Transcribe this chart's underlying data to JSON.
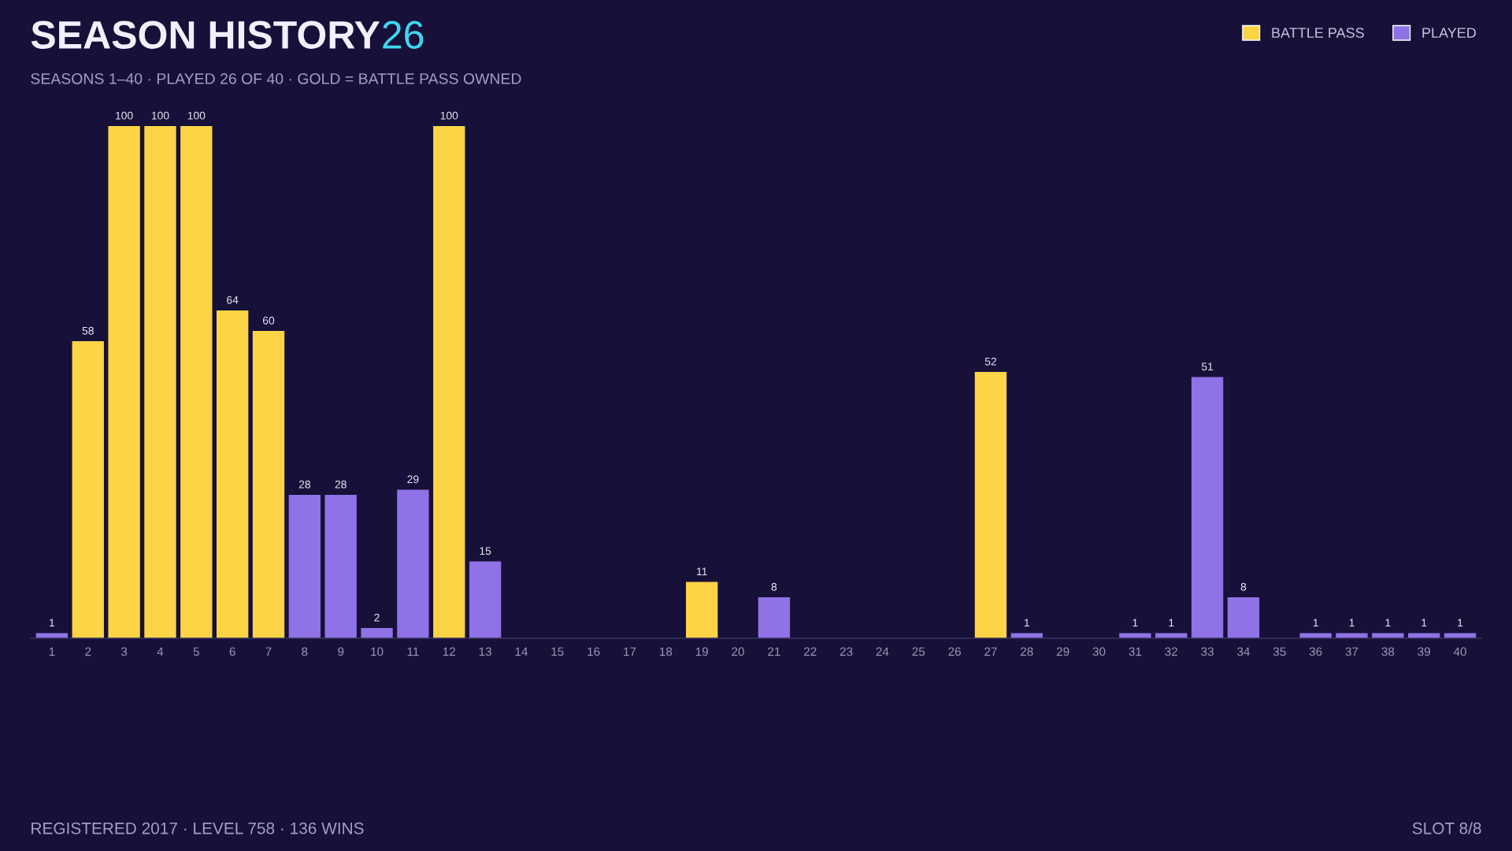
{
  "chart_data": {
    "type": "bar",
    "title": "SEASON HISTORY",
    "subtitle": "SEASONS 1–40 · PLAYED 26 OF 40 · GOLD = BATTLE PASS OWNED",
    "annotations": [
      "26",
      "REGISTERED 2017 · LEVEL 758 · 136 WINS",
      "SLOT 8/8"
    ],
    "categories": [
      "1",
      "2",
      "3",
      "4",
      "5",
      "6",
      "7",
      "8",
      "9",
      "10",
      "11",
      "12",
      "13",
      "14",
      "15",
      "16",
      "17",
      "18",
      "19",
      "20",
      "21",
      "22",
      "23",
      "24",
      "25",
      "26",
      "27",
      "28",
      "29",
      "30",
      "31",
      "32",
      "33",
      "34",
      "35",
      "36",
      "37",
      "38",
      "39",
      "40"
    ],
    "series": [
      {
        "name": "BATTLE PASS",
        "color": "#fdd445",
        "values": [
          null,
          58,
          100,
          100,
          100,
          64,
          60,
          null,
          null,
          null,
          null,
          100,
          null,
          null,
          null,
          null,
          null,
          null,
          11,
          null,
          null,
          null,
          null,
          null,
          null,
          null,
          52,
          null,
          null,
          null,
          null,
          null,
          null,
          null,
          null,
          null,
          null,
          null,
          null,
          null
        ]
      },
      {
        "name": "PLAYED",
        "color": "#8f72e6",
        "values": [
          1,
          null,
          null,
          null,
          null,
          null,
          null,
          28,
          28,
          2,
          29,
          null,
          15,
          null,
          null,
          null,
          null,
          null,
          null,
          null,
          8,
          null,
          null,
          null,
          null,
          null,
          null,
          1,
          null,
          null,
          1,
          1,
          51,
          8,
          null,
          1,
          1,
          1,
          1,
          1
        ]
      }
    ],
    "data_labels": true,
    "legend": "top right",
    "grid": false
  }
}
